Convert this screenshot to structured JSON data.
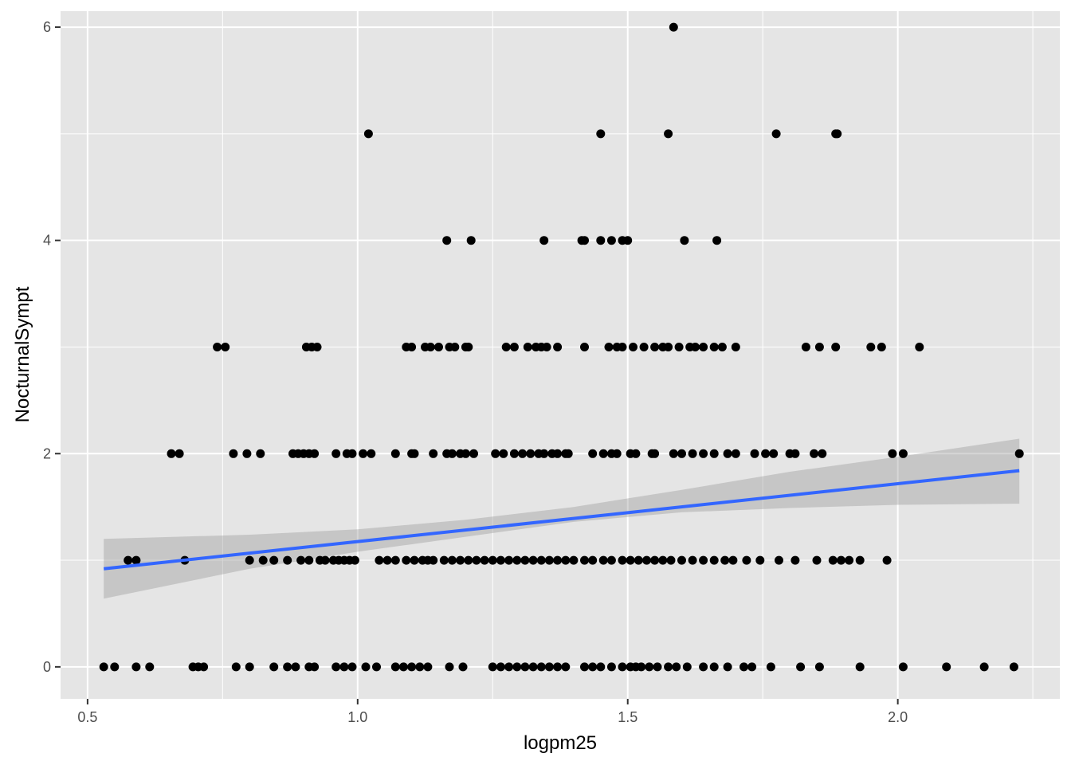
{
  "chart_data": {
    "type": "scatter",
    "title": "",
    "xlabel": "logpm25",
    "ylabel": "NocturnalSympt",
    "xlim": [
      0.45,
      2.3
    ],
    "ylim": [
      -0.3,
      6.15
    ],
    "grid": true,
    "legend": "none",
    "colors": {
      "panel": "#e5e5e5",
      "grid": "#ffffff",
      "point": "#000000",
      "fit_line": "#3366ff",
      "ribbon": "#999999"
    },
    "x_ticks": [
      {
        "value": 0.5,
        "label": "0.5"
      },
      {
        "value": 1.0,
        "label": "1.0"
      },
      {
        "value": 1.5,
        "label": "1.5"
      },
      {
        "value": 2.0,
        "label": "2.0"
      }
    ],
    "y_ticks": [
      {
        "value": 0,
        "label": "0"
      },
      {
        "value": 2,
        "label": "2"
      },
      {
        "value": 4,
        "label": "4"
      },
      {
        "value": 6,
        "label": "6"
      }
    ],
    "points_by_level": [
      {
        "y": 6,
        "x": [
          1.585
        ]
      },
      {
        "y": 5,
        "x": [
          1.02,
          1.45,
          1.575,
          1.775,
          1.885,
          1.888
        ]
      },
      {
        "y": 4,
        "x": [
          1.165,
          1.21,
          1.345,
          1.415,
          1.42,
          1.45,
          1.47,
          1.49,
          1.5,
          1.605,
          1.665
        ]
      },
      {
        "y": 3,
        "x": [
          0.74,
          0.755,
          0.905,
          0.915,
          0.925,
          1.09,
          1.1,
          1.125,
          1.135,
          1.15,
          1.17,
          1.18,
          1.2,
          1.205,
          1.275,
          1.29,
          1.315,
          1.33,
          1.34,
          1.35,
          1.37,
          1.42,
          1.465,
          1.48,
          1.49,
          1.51,
          1.53,
          1.55,
          1.565,
          1.575,
          1.595,
          1.615,
          1.625,
          1.64,
          1.66,
          1.675,
          1.7,
          1.83,
          1.855,
          1.885,
          1.95,
          1.97,
          2.04
        ]
      },
      {
        "y": 2,
        "x": [
          0.655,
          0.67,
          0.77,
          0.795,
          0.82,
          0.88,
          0.89,
          0.9,
          0.91,
          0.92,
          0.96,
          0.98,
          0.99,
          1.01,
          1.025,
          1.07,
          1.1,
          1.105,
          1.14,
          1.165,
          1.175,
          1.19,
          1.2,
          1.215,
          1.255,
          1.27,
          1.29,
          1.305,
          1.32,
          1.335,
          1.345,
          1.36,
          1.37,
          1.385,
          1.39,
          1.435,
          1.455,
          1.47,
          1.48,
          1.505,
          1.515,
          1.545,
          1.55,
          1.585,
          1.6,
          1.62,
          1.64,
          1.66,
          1.685,
          1.7,
          1.735,
          1.755,
          1.77,
          1.8,
          1.81,
          1.845,
          1.86,
          1.99,
          2.01,
          2.225
        ]
      },
      {
        "y": 1,
        "x": [
          0.575,
          0.59,
          0.68,
          0.8,
          0.825,
          0.845,
          0.87,
          0.895,
          0.91,
          0.93,
          0.94,
          0.955,
          0.965,
          0.975,
          0.985,
          0.995,
          1.04,
          1.055,
          1.07,
          1.09,
          1.105,
          1.12,
          1.13,
          1.14,
          1.16,
          1.175,
          1.19,
          1.205,
          1.22,
          1.235,
          1.25,
          1.265,
          1.28,
          1.295,
          1.31,
          1.325,
          1.34,
          1.355,
          1.37,
          1.385,
          1.4,
          1.42,
          1.435,
          1.455,
          1.47,
          1.49,
          1.505,
          1.52,
          1.535,
          1.55,
          1.565,
          1.58,
          1.6,
          1.62,
          1.64,
          1.66,
          1.68,
          1.695,
          1.72,
          1.745,
          1.78,
          1.81,
          1.85,
          1.88,
          1.895,
          1.91,
          1.93,
          1.98
        ]
      },
      {
        "y": 0,
        "x": [
          0.53,
          0.55,
          0.59,
          0.615,
          0.695,
          0.705,
          0.715,
          0.775,
          0.8,
          0.845,
          0.87,
          0.885,
          0.91,
          0.92,
          0.96,
          0.975,
          0.99,
          1.015,
          1.035,
          1.07,
          1.085,
          1.1,
          1.115,
          1.13,
          1.17,
          1.195,
          1.25,
          1.265,
          1.28,
          1.295,
          1.31,
          1.325,
          1.34,
          1.355,
          1.37,
          1.385,
          1.42,
          1.435,
          1.45,
          1.47,
          1.49,
          1.505,
          1.515,
          1.525,
          1.54,
          1.555,
          1.575,
          1.59,
          1.61,
          1.64,
          1.66,
          1.685,
          1.715,
          1.73,
          1.765,
          1.82,
          1.855,
          1.93,
          2.01,
          2.09,
          2.16,
          2.215
        ]
      }
    ],
    "fit_line": {
      "x": [
        0.53,
        2.225
      ],
      "y": [
        0.92,
        1.84
      ]
    },
    "confidence_band": {
      "x": [
        0.53,
        0.8,
        1.0,
        1.2,
        1.4,
        1.6,
        1.8,
        2.0,
        2.225
      ],
      "upper": [
        1.2,
        1.24,
        1.29,
        1.38,
        1.5,
        1.66,
        1.83,
        1.97,
        2.14
      ],
      "lower": [
        0.64,
        0.92,
        1.08,
        1.22,
        1.36,
        1.45,
        1.49,
        1.52,
        1.53
      ]
    }
  }
}
